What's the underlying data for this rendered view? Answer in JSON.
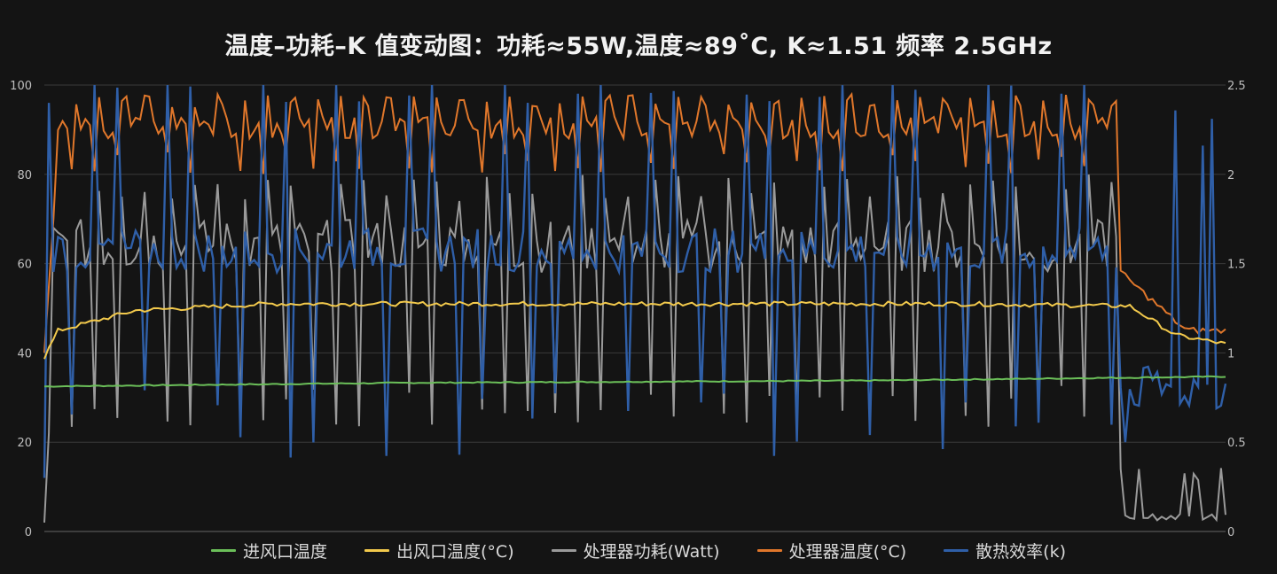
{
  "chart_data": {
    "type": "line",
    "title": "温度–功耗–K 值变动图：功耗≈55W,温度≈89˚C, K≈1.51  频率 2.5GHz",
    "xlabel": "",
    "ylabel": "",
    "ylim": [
      0,
      100
    ],
    "y2lim": [
      0,
      2.5
    ],
    "left_ticks": [
      "0",
      "20",
      "40",
      "60",
      "80",
      "100"
    ],
    "right_ticks": [
      "0",
      "0.5",
      "1",
      "1.5",
      "2",
      "2.5"
    ],
    "grid": "on",
    "legend_position": "bottom",
    "n_samples": 260,
    "series": [
      {
        "name": "进风口温度",
        "axis": "left",
        "color": "#6bbf59",
        "keypoints": [
          [
            0,
            32.5
          ],
          [
            80,
            33.3
          ],
          [
            180,
            33.8
          ],
          [
            259,
            34.7
          ]
        ]
      },
      {
        "name": "出风口温度(°C)",
        "axis": "left",
        "color": "#f2c94c",
        "keypoints": [
          [
            0,
            39
          ],
          [
            3,
            45
          ],
          [
            20,
            49.5
          ],
          [
            50,
            51
          ],
          [
            120,
            51
          ],
          [
            200,
            51
          ],
          [
            238,
            50.5
          ],
          [
            248,
            44
          ],
          [
            259,
            42
          ]
        ]
      },
      {
        "name": "处理器功耗(Watt)",
        "axis": "left",
        "color": "#9a9a9a",
        "base": 66,
        "troughs": 22,
        "ylow": 23,
        "tail_start": 236,
        "tail_value": 2.5
      },
      {
        "name": "处理器温度(°C)",
        "axis": "left",
        "color": "#e0772b",
        "base": 88,
        "peak": 97,
        "troughs": 80,
        "tail_start": 236,
        "tail_value": 45
      },
      {
        "name": "散热效率(k)",
        "axis": "right",
        "color": "#2f5fa8",
        "base": 1.6,
        "spike": 2.4,
        "dip": 0.4,
        "tail_start": 236,
        "tail_value": 0.8
      }
    ]
  }
}
